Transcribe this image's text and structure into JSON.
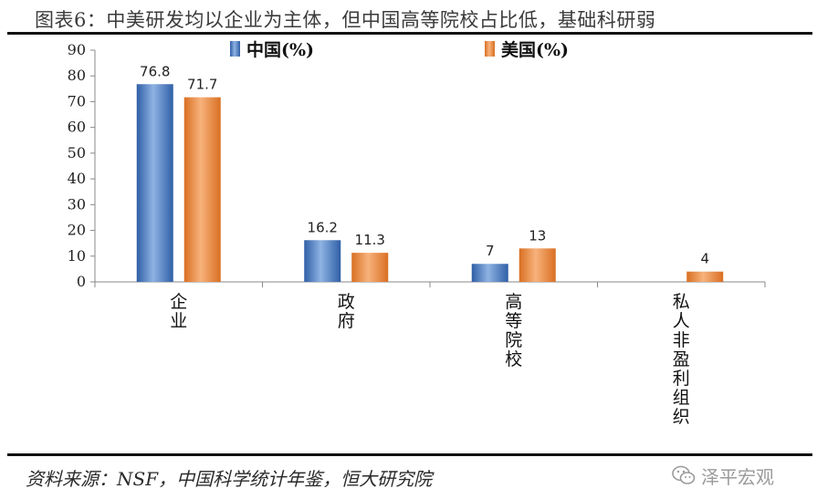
{
  "title": "图表6：中美研发均以企业为主体，但中国高等院校占比低，基础科研弱",
  "source": "资料来源：NSF，中国科学统计年鉴，恒大研究院",
  "watermark": "泽平宏观",
  "colors": {
    "china": "#4a7cc0",
    "usa": "#ee8a3c"
  },
  "chart_data": {
    "type": "bar",
    "categories": [
      "企业",
      "政府",
      "高等院校",
      "私人非盈利组织"
    ],
    "series": [
      {
        "name": "中国(%)",
        "values": [
          76.8,
          16.2,
          7,
          null
        ],
        "labels": [
          "76.8",
          "16.2",
          "7",
          ""
        ]
      },
      {
        "name": "美国(%)",
        "values": [
          71.7,
          11.3,
          13,
          4
        ],
        "labels": [
          "71.7",
          "11.3",
          "13",
          "4"
        ]
      }
    ],
    "ylim": [
      0,
      90
    ],
    "yticks": [
      0,
      10,
      20,
      30,
      40,
      50,
      60,
      70,
      80,
      90
    ],
    "legend_position": "top-center",
    "grid": false
  }
}
